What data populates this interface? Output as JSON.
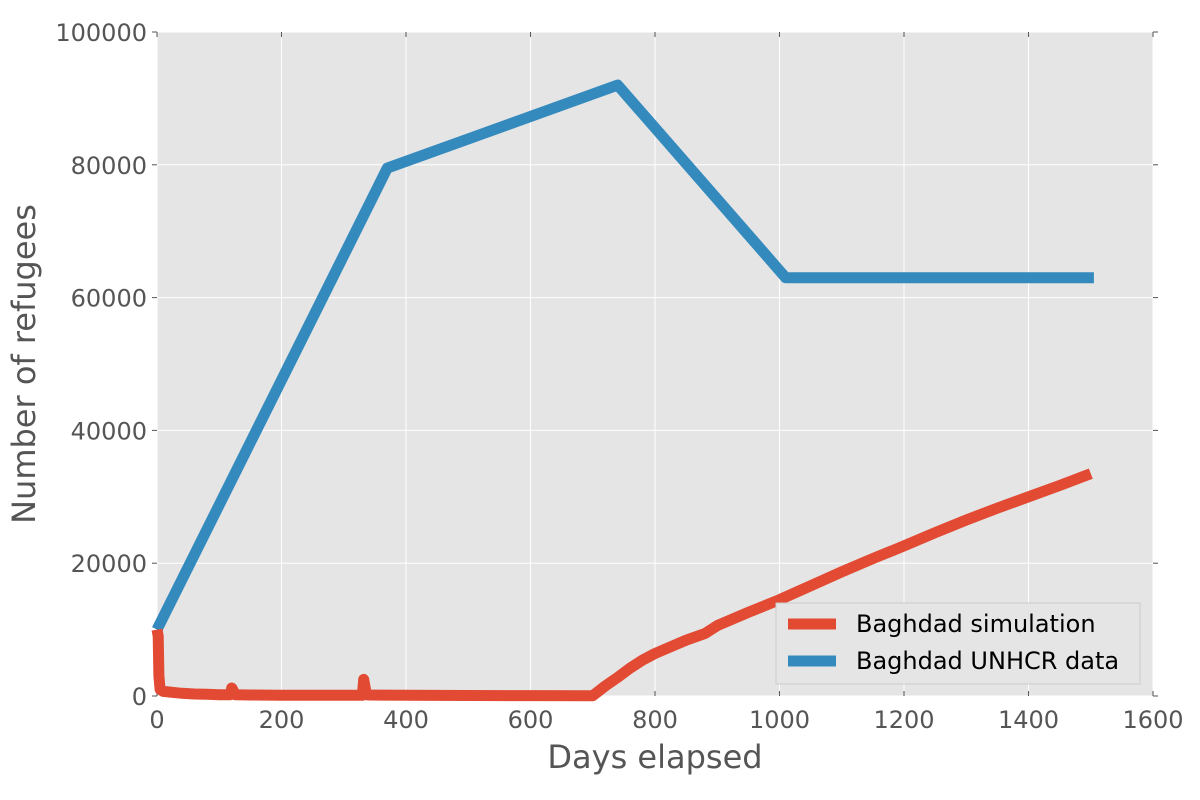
{
  "chart_data": {
    "type": "line",
    "title": "",
    "xlabel": "Days elapsed",
    "ylabel": "Number of refugees",
    "xlim": [
      0,
      1600
    ],
    "ylim": [
      0,
      100000
    ],
    "xticks": [
      0,
      200,
      400,
      600,
      800,
      1000,
      1200,
      1400,
      1600
    ],
    "yticks": [
      0,
      20000,
      40000,
      60000,
      80000,
      100000
    ],
    "grid": true,
    "legend_position": "lower-right",
    "background_color": "#e5e5e5",
    "series": [
      {
        "name": "Baghdad simulation",
        "color": "#e24a33",
        "x": [
          0,
          2,
          3,
          5,
          10,
          20,
          30,
          40,
          60,
          80,
          100,
          118,
          120,
          121,
          123,
          126,
          150,
          200,
          250,
          300,
          330,
          332,
          333,
          334,
          335,
          336,
          340,
          400,
          500,
          600,
          700,
          720,
          740,
          760,
          780,
          800,
          850,
          880,
          900,
          950,
          1000,
          1050,
          1100,
          1150,
          1200,
          1250,
          1300,
          1350,
          1400,
          1450,
          1500
        ],
        "y": [
          10000,
          9000,
          3000,
          1000,
          700,
          600,
          500,
          400,
          300,
          250,
          200,
          200,
          1200,
          1100,
          700,
          200,
          150,
          100,
          100,
          100,
          100,
          2500,
          2000,
          1500,
          1000,
          200,
          150,
          100,
          80,
          60,
          50,
          1500,
          2800,
          4200,
          5400,
          6400,
          8400,
          9400,
          10600,
          12600,
          14500,
          16600,
          18700,
          20700,
          22600,
          24600,
          26500,
          28300,
          30000,
          31700,
          33500
        ]
      },
      {
        "name": "Baghdad UNHCR data",
        "color": "#348abd",
        "x": [
          0,
          370,
          740,
          1010,
          1505
        ],
        "y": [
          10000,
          79500,
          92000,
          63000,
          63000
        ]
      }
    ]
  }
}
